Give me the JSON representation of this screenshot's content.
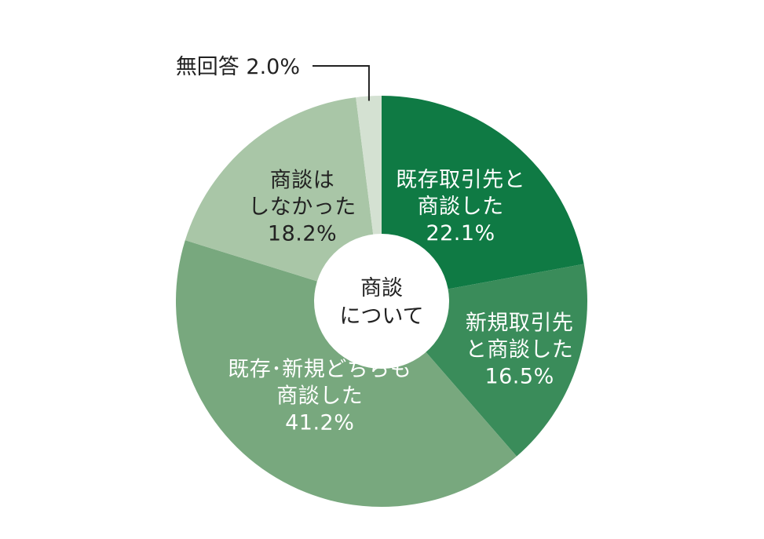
{
  "chart_data": {
    "type": "pie",
    "title": "",
    "center_label": [
      "商談",
      "について"
    ],
    "start": "top",
    "direction": "clockwise",
    "slices": [
      {
        "label_lines": [
          "既存取引先と",
          "商談した"
        ],
        "value": 22.1,
        "value_label": "22.1%",
        "color": "#0f7a44",
        "text_color": "#ffffff"
      },
      {
        "label_lines": [
          "新規取引先",
          "と商談した"
        ],
        "value": 16.5,
        "value_label": "16.5%",
        "color": "#3a8c5a",
        "text_color": "#ffffff"
      },
      {
        "label_lines": [
          "既存･新規どちらも",
          "商談した"
        ],
        "value": 41.2,
        "value_label": "41.2%",
        "color": "#78a87e",
        "text_color": "#ffffff"
      },
      {
        "label_lines": [
          "商談は",
          "しなかった"
        ],
        "value": 18.2,
        "value_label": "18.2%",
        "color": "#a9c6a7",
        "text_color": "#222222"
      },
      {
        "label_lines": [],
        "value": 2.0,
        "value_label": "",
        "color": "#d4e1d2",
        "text_color": "#222222",
        "callout": "無回答 2.0%"
      }
    ]
  }
}
